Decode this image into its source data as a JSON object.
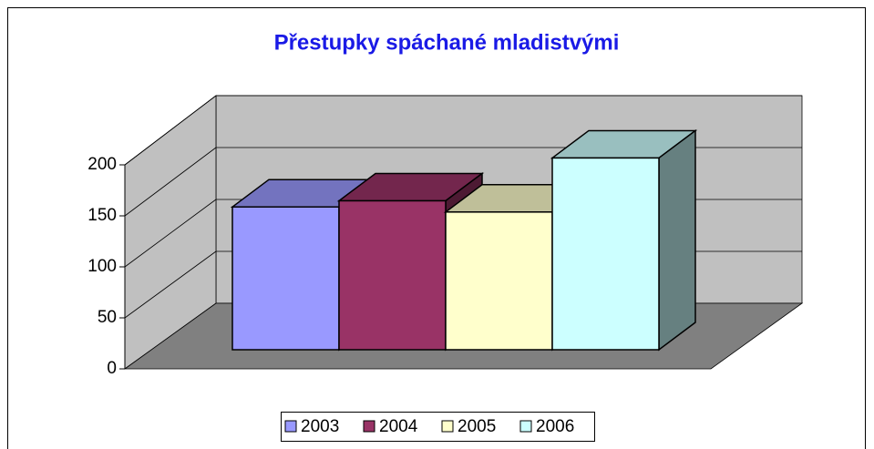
{
  "chart_data": {
    "type": "bar3d",
    "title": "Přestupky spáchané mladistvými",
    "categories": [
      null
    ],
    "series": [
      {
        "name": "2003",
        "color": "#9999ff",
        "values": [
          140
        ]
      },
      {
        "name": "2004",
        "color": "#993366",
        "values": [
          146
        ]
      },
      {
        "name": "2005",
        "color": "#ffffcc",
        "values": [
          135
        ]
      },
      {
        "name": "2006",
        "color": "#ccffff",
        "values": [
          188
        ]
      }
    ],
    "ylim": [
      0,
      200
    ],
    "yticks": [
      0,
      50,
      100,
      150,
      200
    ],
    "grid": true,
    "legend": "bottom"
  }
}
